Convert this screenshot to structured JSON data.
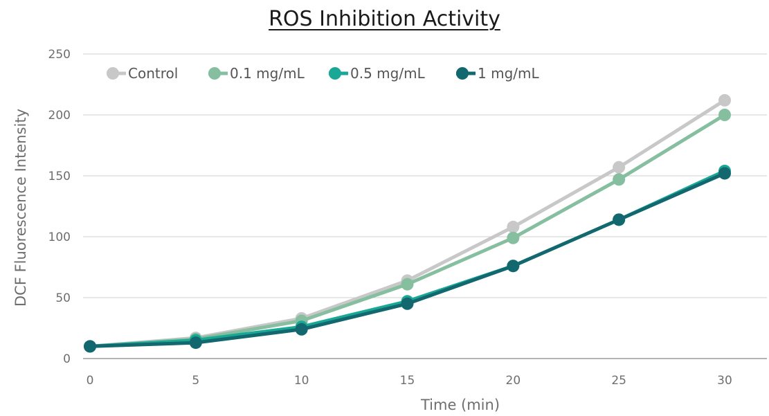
{
  "chart_data": {
    "type": "line",
    "title": "ROS Inhibition Activity",
    "xlabel": "Time (min)",
    "ylabel": "DCF Fluorescence Intensity",
    "x": [
      0,
      5,
      10,
      15,
      20,
      25,
      30
    ],
    "xlim": [
      0,
      30
    ],
    "ylim": [
      0,
      250
    ],
    "yticks": [
      0,
      50,
      100,
      150,
      200,
      250
    ],
    "grid": "horizontal",
    "legend_position": "top-left",
    "series": [
      {
        "name": "Control",
        "color": "#c8c8c8",
        "values": [
          10,
          17,
          33,
          64,
          108,
          157,
          212
        ]
      },
      {
        "name": "0.1 mg/mL",
        "color": "#86bfa0",
        "values": [
          10,
          16,
          31,
          61,
          99,
          147,
          200
        ]
      },
      {
        "name": "0.5 mg/mL",
        "color": "#1aa896",
        "values": [
          10,
          15,
          26,
          47,
          76,
          114,
          154
        ]
      },
      {
        "name": "1 mg/mL",
        "color": "#12686e",
        "values": [
          10,
          13,
          24,
          45,
          76,
          114,
          152
        ]
      }
    ]
  }
}
